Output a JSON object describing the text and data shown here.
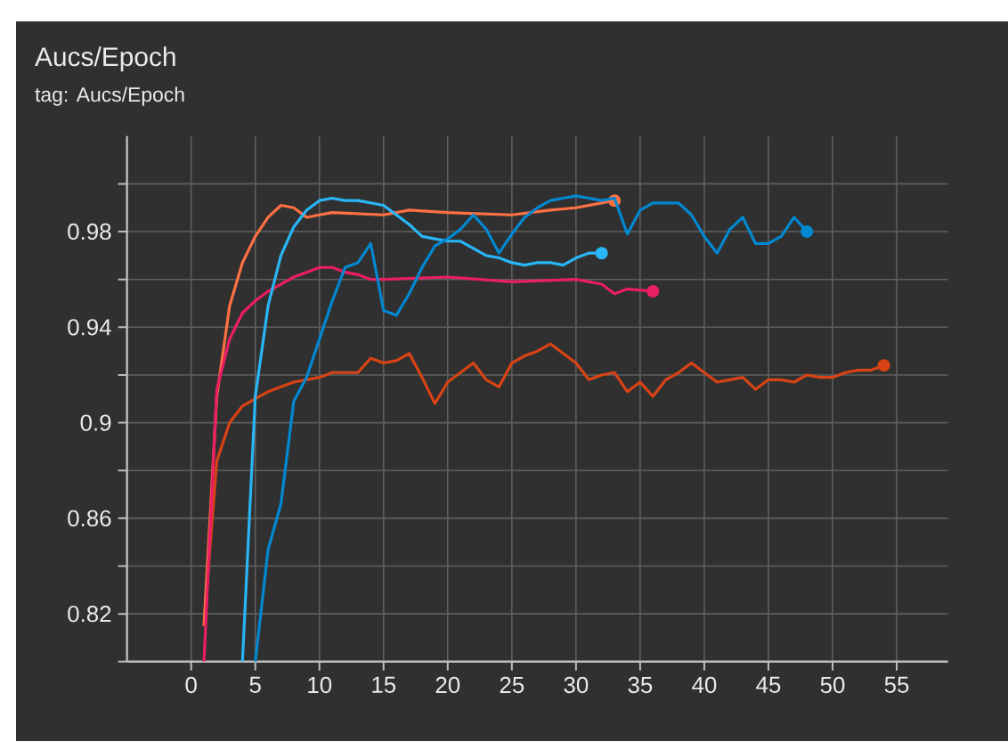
{
  "chart_data": {
    "type": "line",
    "title": "Aucs/Epoch",
    "subtitle": "tag: Aucs/Epoch",
    "xlim": [
      -5,
      59
    ],
    "xticks": [
      0,
      5,
      10,
      15,
      20,
      25,
      30,
      35,
      40,
      45,
      50,
      55
    ],
    "ylim": [
      0.8,
      1.02
    ],
    "yticks": [
      {
        "value": 0.8,
        "label": null
      },
      0.82,
      {
        "value": 0.84,
        "label": null
      },
      0.86,
      {
        "value": 0.88,
        "label": null
      },
      0.9,
      {
        "value": 0.92,
        "label": null
      },
      0.94,
      {
        "value": 0.96,
        "label": null
      },
      0.98,
      {
        "value": 1.0,
        "label": null
      }
    ],
    "grid": true,
    "line_style": "solid",
    "series": [
      {
        "color": "#d84315",
        "x": [
          1,
          2,
          3,
          4,
          5,
          6,
          7,
          8,
          9,
          10,
          11,
          12,
          13,
          14,
          15,
          16,
          17,
          18,
          19,
          20,
          21,
          22,
          23,
          24,
          25,
          26,
          27,
          28,
          29,
          30,
          31,
          32,
          33,
          34,
          35,
          36,
          37,
          38,
          39,
          40,
          41,
          42,
          43,
          44,
          45,
          46,
          47,
          48,
          49,
          50,
          51,
          52,
          53,
          54
        ],
        "values": [
          0.815,
          0.884,
          0.9,
          0.907,
          0.91,
          0.913,
          0.915,
          0.917,
          0.918,
          0.919,
          0.921,
          0.921,
          0.921,
          0.927,
          0.925,
          0.926,
          0.929,
          0.919,
          0.908,
          0.917,
          0.921,
          0.925,
          0.918,
          0.915,
          0.925,
          0.928,
          0.93,
          0.933,
          0.929,
          0.925,
          0.918,
          0.92,
          0.921,
          0.913,
          0.917,
          0.911,
          0.918,
          0.921,
          0.925,
          0.921,
          0.917,
          0.918,
          0.919,
          0.914,
          0.918,
          0.918,
          0.917,
          0.92,
          0.919,
          0.919,
          0.921,
          0.922,
          0.922,
          0.924
        ]
      },
      {
        "color": "#ff7043",
        "x": [
          1,
          2,
          3,
          4,
          5,
          6,
          7,
          8,
          9,
          10,
          11,
          15,
          17,
          20,
          25,
          28,
          30,
          33
        ],
        "values": [
          0.815,
          0.911,
          0.949,
          0.967,
          0.978,
          0.986,
          0.991,
          0.99,
          0.986,
          0.987,
          0.988,
          0.987,
          0.989,
          0.988,
          0.987,
          0.989,
          0.99,
          0.993
        ]
      },
      {
        "color": "#e91e63",
        "x": [
          1,
          2,
          3,
          4,
          5,
          6,
          7,
          8,
          9,
          10,
          11,
          12,
          13,
          14,
          15,
          20,
          25,
          30,
          32,
          33,
          34,
          36
        ],
        "values": [
          0.8,
          0.914,
          0.935,
          0.946,
          0.951,
          0.955,
          0.958,
          0.961,
          0.963,
          0.965,
          0.965,
          0.963,
          0.962,
          0.96,
          0.96,
          0.961,
          0.959,
          0.96,
          0.958,
          0.954,
          0.956,
          0.955
        ]
      },
      {
        "color": "#29b6f6",
        "x": [
          4,
          5,
          6,
          7,
          8,
          9,
          10,
          11,
          12,
          13,
          14,
          15,
          16,
          17,
          18,
          19,
          20,
          21,
          22,
          23,
          24,
          25,
          26,
          27,
          28,
          29,
          30,
          31,
          32
        ],
        "values": [
          0.8,
          0.911,
          0.949,
          0.97,
          0.982,
          0.989,
          0.993,
          0.994,
          0.993,
          0.993,
          0.992,
          0.991,
          0.987,
          0.983,
          0.978,
          0.977,
          0.976,
          0.976,
          0.973,
          0.97,
          0.969,
          0.967,
          0.966,
          0.967,
          0.967,
          0.966,
          0.969,
          0.971,
          0.971
        ]
      },
      {
        "color": "#0288d1",
        "x": [
          5,
          6,
          7,
          8,
          9,
          10,
          11,
          12,
          13,
          14,
          15,
          16,
          17,
          18,
          19,
          20,
          21,
          22,
          23,
          24,
          25,
          26,
          27,
          28,
          29,
          30,
          31,
          32,
          33,
          34,
          35,
          36,
          38,
          39,
          40,
          41,
          42,
          43,
          44,
          45,
          46,
          47,
          48
        ],
        "values": [
          0.8,
          0.847,
          0.866,
          0.909,
          0.919,
          0.935,
          0.951,
          0.965,
          0.967,
          0.975,
          0.947,
          0.945,
          0.954,
          0.965,
          0.974,
          0.977,
          0.981,
          0.987,
          0.981,
          0.971,
          0.979,
          0.986,
          0.99,
          0.993,
          0.994,
          0.995,
          0.994,
          0.993,
          0.994,
          0.979,
          0.989,
          0.992,
          0.992,
          0.987,
          0.978,
          0.971,
          0.981,
          0.986,
          0.975,
          0.975,
          0.978,
          0.986,
          0.98
        ]
      }
    ]
  }
}
